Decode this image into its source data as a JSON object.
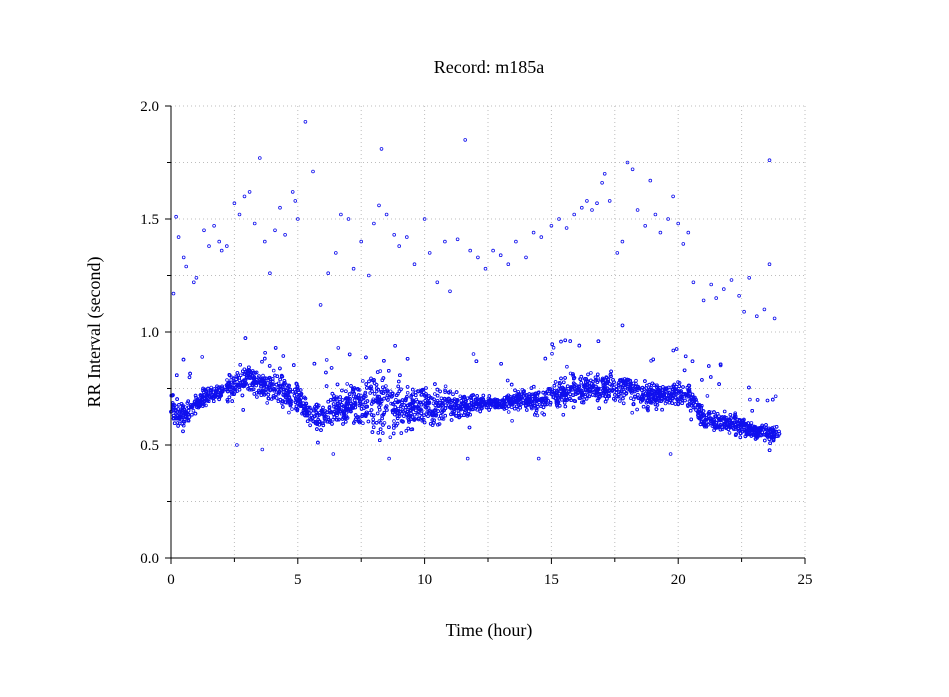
{
  "chart_data": {
    "type": "scatter",
    "title": "Record:  m185a",
    "xlabel": "Time (hour)",
    "ylabel": "RR Interval (second)",
    "xlim": [
      0,
      25
    ],
    "ylim": [
      0,
      2.0
    ],
    "x_ticks": [
      "0",
      "5",
      "10",
      "15",
      "20",
      "25"
    ],
    "y_ticks": [
      "0.0",
      "0.5",
      "1.0",
      "1.5",
      "2.0"
    ],
    "grid": true,
    "marker": "open-circle",
    "color": "#1010ee",
    "series": [
      {
        "band": [
          [
            0.0,
            0.67,
            0.08
          ],
          [
            0.5,
            0.63,
            0.06
          ],
          [
            1.0,
            0.68,
            0.05
          ],
          [
            1.5,
            0.72,
            0.04
          ],
          [
            2.0,
            0.73,
            0.04
          ],
          [
            2.5,
            0.76,
            0.07
          ],
          [
            3.0,
            0.8,
            0.07
          ],
          [
            3.5,
            0.77,
            0.08
          ],
          [
            4.0,
            0.76,
            0.08
          ],
          [
            4.5,
            0.74,
            0.09
          ],
          [
            5.0,
            0.71,
            0.08
          ],
          [
            5.5,
            0.63,
            0.05
          ],
          [
            6.0,
            0.62,
            0.06
          ],
          [
            6.5,
            0.66,
            0.08
          ],
          [
            7.0,
            0.68,
            0.09
          ],
          [
            7.5,
            0.7,
            0.12
          ],
          [
            8.0,
            0.7,
            0.14
          ],
          [
            8.5,
            0.68,
            0.14
          ],
          [
            9.0,
            0.68,
            0.13
          ],
          [
            9.5,
            0.67,
            0.11
          ],
          [
            10.0,
            0.68,
            0.09
          ],
          [
            10.5,
            0.67,
            0.08
          ],
          [
            11.0,
            0.69,
            0.07
          ],
          [
            11.5,
            0.67,
            0.06
          ],
          [
            12.0,
            0.68,
            0.04
          ],
          [
            12.5,
            0.69,
            0.03
          ],
          [
            13.0,
            0.68,
            0.03
          ],
          [
            13.5,
            0.69,
            0.04
          ],
          [
            14.0,
            0.71,
            0.05
          ],
          [
            14.5,
            0.69,
            0.06
          ],
          [
            15.0,
            0.72,
            0.06
          ],
          [
            15.5,
            0.73,
            0.07
          ],
          [
            16.0,
            0.75,
            0.07
          ],
          [
            16.5,
            0.76,
            0.07
          ],
          [
            17.0,
            0.76,
            0.08
          ],
          [
            17.5,
            0.75,
            0.08
          ],
          [
            18.0,
            0.75,
            0.07
          ],
          [
            18.5,
            0.73,
            0.07
          ],
          [
            19.0,
            0.71,
            0.07
          ],
          [
            19.5,
            0.72,
            0.06
          ],
          [
            20.0,
            0.73,
            0.06
          ],
          [
            20.5,
            0.72,
            0.05
          ],
          [
            21.0,
            0.62,
            0.06
          ],
          [
            21.5,
            0.6,
            0.05
          ],
          [
            22.0,
            0.6,
            0.06
          ],
          [
            22.5,
            0.58,
            0.05
          ],
          [
            23.0,
            0.56,
            0.04
          ],
          [
            23.5,
            0.55,
            0.04
          ],
          [
            24.0,
            0.54,
            0.04
          ]
        ],
        "outliers": [
          [
            0.1,
            1.17
          ],
          [
            0.2,
            1.51
          ],
          [
            0.3,
            1.42
          ],
          [
            0.5,
            1.33
          ],
          [
            0.6,
            1.29
          ],
          [
            0.9,
            1.22
          ],
          [
            1.0,
            1.24
          ],
          [
            1.3,
            1.45
          ],
          [
            1.5,
            1.38
          ],
          [
            1.7,
            1.47
          ],
          [
            1.9,
            1.4
          ],
          [
            2.0,
            1.36
          ],
          [
            2.2,
            1.38
          ],
          [
            2.5,
            1.57
          ],
          [
            2.7,
            1.52
          ],
          [
            2.9,
            1.6
          ],
          [
            3.1,
            1.62
          ],
          [
            3.3,
            1.48
          ],
          [
            3.5,
            1.77
          ],
          [
            3.7,
            1.4
          ],
          [
            3.9,
            1.26
          ],
          [
            4.1,
            1.45
          ],
          [
            4.3,
            1.55
          ],
          [
            4.5,
            1.43
          ],
          [
            4.8,
            1.62
          ],
          [
            4.9,
            1.58
          ],
          [
            5.0,
            1.5
          ],
          [
            5.3,
            1.93
          ],
          [
            5.6,
            1.71
          ],
          [
            5.9,
            1.12
          ],
          [
            6.2,
            1.26
          ],
          [
            6.5,
            1.35
          ],
          [
            6.7,
            1.52
          ],
          [
            7.0,
            1.5
          ],
          [
            7.2,
            1.28
          ],
          [
            7.5,
            1.4
          ],
          [
            7.8,
            1.25
          ],
          [
            8.0,
            1.48
          ],
          [
            8.2,
            1.56
          ],
          [
            8.3,
            1.81
          ],
          [
            8.5,
            1.52
          ],
          [
            8.8,
            1.43
          ],
          [
            9.0,
            1.38
          ],
          [
            9.3,
            1.42
          ],
          [
            9.6,
            1.3
          ],
          [
            10.0,
            1.5
          ],
          [
            10.2,
            1.35
          ],
          [
            10.5,
            1.22
          ],
          [
            10.8,
            1.4
          ],
          [
            11.0,
            1.18
          ],
          [
            11.3,
            1.41
          ],
          [
            11.6,
            1.85
          ],
          [
            11.8,
            1.36
          ],
          [
            12.1,
            1.33
          ],
          [
            12.4,
            1.28
          ],
          [
            12.7,
            1.36
          ],
          [
            13.0,
            1.34
          ],
          [
            13.3,
            1.3
          ],
          [
            13.6,
            1.4
          ],
          [
            14.0,
            1.33
          ],
          [
            14.3,
            1.44
          ],
          [
            14.6,
            1.42
          ],
          [
            15.0,
            1.47
          ],
          [
            15.3,
            1.5
          ],
          [
            15.6,
            1.46
          ],
          [
            15.9,
            1.52
          ],
          [
            16.2,
            1.55
          ],
          [
            16.4,
            1.58
          ],
          [
            16.6,
            1.54
          ],
          [
            16.8,
            1.57
          ],
          [
            17.0,
            1.66
          ],
          [
            17.1,
            1.7
          ],
          [
            17.3,
            1.58
          ],
          [
            17.6,
            1.35
          ],
          [
            17.8,
            1.4
          ],
          [
            18.0,
            1.75
          ],
          [
            18.2,
            1.72
          ],
          [
            18.4,
            1.54
          ],
          [
            18.7,
            1.47
          ],
          [
            18.9,
            1.67
          ],
          [
            19.1,
            1.52
          ],
          [
            19.3,
            1.44
          ],
          [
            19.6,
            1.5
          ],
          [
            19.8,
            1.6
          ],
          [
            20.0,
            1.48
          ],
          [
            20.2,
            1.39
          ],
          [
            20.4,
            1.44
          ],
          [
            20.6,
            1.22
          ],
          [
            21.0,
            1.14
          ],
          [
            21.3,
            1.21
          ],
          [
            21.5,
            1.15
          ],
          [
            21.8,
            1.19
          ],
          [
            22.1,
            1.23
          ],
          [
            22.4,
            1.16
          ],
          [
            22.6,
            1.09
          ],
          [
            22.8,
            1.24
          ],
          [
            23.1,
            1.07
          ],
          [
            23.4,
            1.1
          ],
          [
            23.6,
            1.76
          ],
          [
            23.6,
            1.3
          ],
          [
            23.8,
            1.06
          ],
          [
            11.7,
            0.44
          ],
          [
            14.5,
            0.44
          ],
          [
            8.6,
            0.44
          ],
          [
            3.6,
            0.48
          ],
          [
            6.4,
            0.46
          ],
          [
            19.7,
            0.46
          ],
          [
            2.6,
            0.5
          ]
        ]
      }
    ]
  }
}
